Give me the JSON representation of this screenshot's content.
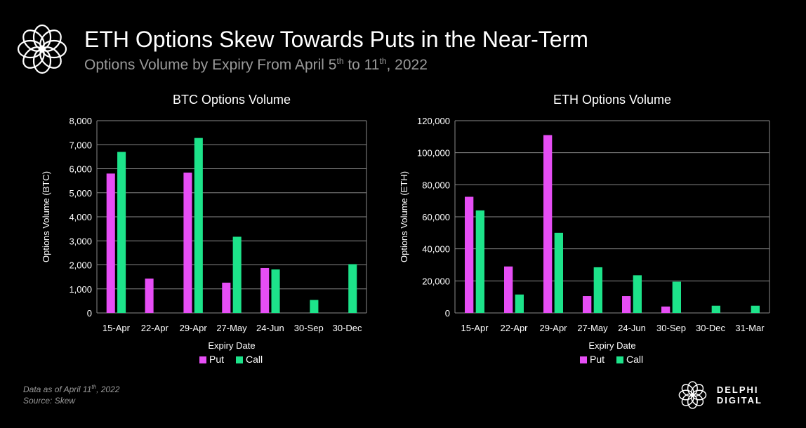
{
  "header": {
    "title": "ETH Options Skew Towards Puts in the Near-Term",
    "subtitle_prefix": "Options Volume by Expiry From April 5",
    "subtitle_sup1": "th",
    "subtitle_mid": " to 11",
    "subtitle_sup2": "th",
    "subtitle_suffix": ", 2022"
  },
  "footnote": {
    "line1_prefix": "Data as of April 11",
    "line1_sup": "th",
    "line1_suffix": ", 2022",
    "line2": "Source:  Skew"
  },
  "brand": {
    "name": "DELPHI DIGITAL",
    "logo_icon": "delphi-flower-icon"
  },
  "colors": {
    "put": "#e64ef5",
    "call": "#1de38a",
    "grid": "#8a8a8a"
  },
  "chart_data": [
    {
      "type": "bar",
      "title": "BTC Options Volume",
      "xlabel": "Expiry Date",
      "ylabel": "Options Volume (BTC)",
      "categories": [
        "15-Apr",
        "22-Apr",
        "29-Apr",
        "27-May",
        "24-Jun",
        "30-Sep",
        "30-Dec"
      ],
      "ylim": [
        0,
        8000
      ],
      "yticks": [
        0,
        1000,
        2000,
        3000,
        4000,
        5000,
        6000,
        7000,
        8000
      ],
      "ytick_labels": [
        "0",
        "1,000",
        "2,000",
        "3,000",
        "4,000",
        "5,000",
        "6,000",
        "7,000",
        "8,000"
      ],
      "grid": true,
      "legend_position": "bottom",
      "series": [
        {
          "name": "Put",
          "color": "#e64ef5",
          "values": [
            5800,
            1430,
            5840,
            1260,
            1870,
            0,
            0
          ]
        },
        {
          "name": "Call",
          "color": "#1de38a",
          "values": [
            6700,
            0,
            7280,
            3170,
            1810,
            540,
            2030
          ]
        }
      ]
    },
    {
      "type": "bar",
      "title": "ETH Options Volume",
      "xlabel": "Expiry Date",
      "ylabel": "Options Volume (ETH)",
      "categories": [
        "15-Apr",
        "22-Apr",
        "29-Apr",
        "27-May",
        "24-Jun",
        "30-Sep",
        "30-Dec",
        "31-Mar"
      ],
      "ylim": [
        0,
        120000
      ],
      "yticks": [
        0,
        20000,
        40000,
        60000,
        80000,
        100000,
        120000
      ],
      "ytick_labels": [
        "0",
        "20,000",
        "40,000",
        "60,000",
        "80,000",
        "100,000",
        "120,000"
      ],
      "grid": true,
      "legend_position": "bottom",
      "series": [
        {
          "name": "Put",
          "color": "#e64ef5",
          "values": [
            72500,
            29000,
            111000,
            10500,
            10500,
            4000,
            0,
            0
          ]
        },
        {
          "name": "Call",
          "color": "#1de38a",
          "values": [
            64000,
            11500,
            50000,
            28500,
            23500,
            19500,
            4500,
            4500
          ]
        }
      ]
    }
  ]
}
